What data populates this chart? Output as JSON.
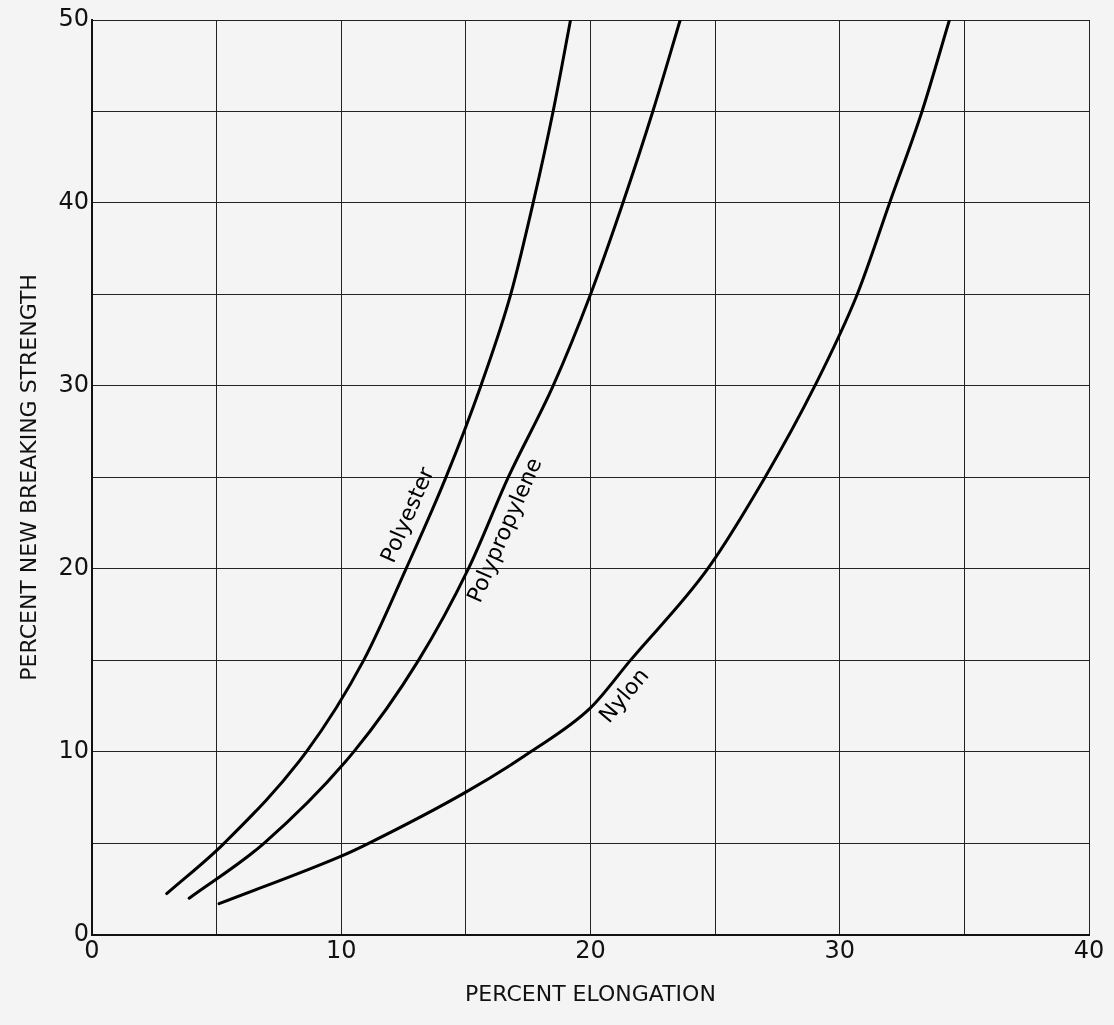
{
  "chart_data": {
    "type": "line",
    "xlabel": "PERCENT ELONGATION",
    "ylabel": "PERCENT NEW BREAKING STRENGTH",
    "xlim": [
      0,
      40
    ],
    "ylim": [
      0,
      50
    ],
    "xticks": [
      0,
      {
        "value": 5,
        "label": null
      },
      10,
      {
        "value": 15,
        "label": null
      },
      20,
      {
        "value": 25,
        "label": null
      },
      30,
      {
        "value": 35,
        "label": null
      },
      40
    ],
    "yticks": [
      0,
      {
        "value": 5,
        "label": null
      },
      10,
      {
        "value": 15,
        "label": null
      },
      20,
      {
        "value": 25,
        "label": null
      },
      30,
      {
        "value": 35,
        "label": null
      },
      40,
      {
        "value": 45,
        "label": null
      },
      50
    ],
    "grid": true,
    "legend": false,
    "marker": "none",
    "line_style": "solid",
    "series": [
      {
        "name": "Polyester",
        "color": "#000000",
        "x": [
          3.0,
          5.3,
          8.6,
          10.9,
          12.6,
          14.2,
          15.6,
          16.8,
          17.7,
          18.5,
          19.2
        ],
        "values": [
          2.25,
          5,
          10,
          15,
          20,
          25,
          30,
          35,
          40,
          45,
          50
        ]
      },
      {
        "name": "Polypropylene",
        "color": "#000000",
        "x": [
          3.9,
          6.9,
          10.5,
          13.1,
          15.1,
          16.7,
          18.5,
          20.0,
          21.3,
          22.5,
          23.6
        ],
        "values": [
          2.0,
          5,
          10,
          15,
          20,
          25,
          30,
          35,
          40,
          45,
          50
        ]
      },
      {
        "name": "Nylon",
        "color": "#000000",
        "x": [
          5.1,
          10.0,
          11.1,
          15.0,
          17.6,
          20.0,
          21.6,
          24.7,
          27.0,
          29.0,
          30.7,
          32.0,
          33.3,
          34.4
        ],
        "values": [
          1.7,
          4.3,
          5,
          7.8,
          10,
          12.4,
          15,
          20,
          25,
          30,
          35,
          40,
          45,
          50
        ]
      }
    ]
  }
}
